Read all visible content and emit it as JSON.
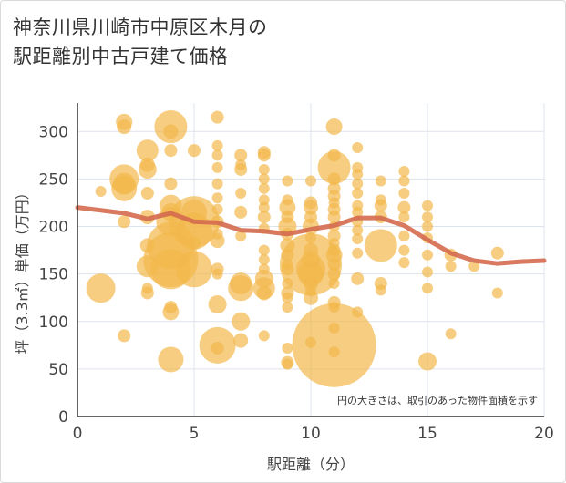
{
  "title_lines": [
    "神奈川県川崎市中原区木月の",
    "駅距離別中古戸建て価格"
  ],
  "colors": {
    "bubble": "#f2b84b",
    "line": "#d46a4f",
    "grid": "#dde3ec",
    "axis": "#333333"
  },
  "chart_data": {
    "type": "scatter",
    "title": "神奈川県川崎市中原区木月の駅距離別中古戸建て価格",
    "xlabel": "駅距離（分）",
    "ylabel": "坪（3.3㎡）単価（万円）",
    "xlim": [
      0,
      20
    ],
    "ylim": [
      0,
      330
    ],
    "xticks": [
      0,
      5,
      10,
      15,
      20
    ],
    "yticks": [
      0,
      50,
      100,
      150,
      200,
      250,
      300
    ],
    "grid": true,
    "annotation": "円の大きさは、取引のあった物件面積を示す",
    "points": [
      {
        "x": 1,
        "y": 237,
        "s": 6
      },
      {
        "x": 1,
        "y": 135,
        "s": 16
      },
      {
        "x": 2,
        "y": 310,
        "s": 9
      },
      {
        "x": 2,
        "y": 305,
        "s": 8
      },
      {
        "x": 2,
        "y": 250,
        "s": 16
      },
      {
        "x": 2,
        "y": 245,
        "s": 12
      },
      {
        "x": 2,
        "y": 240,
        "s": 14
      },
      {
        "x": 2,
        "y": 205,
        "s": 7
      },
      {
        "x": 2,
        "y": 85,
        "s": 7
      },
      {
        "x": 3,
        "y": 280,
        "s": 12
      },
      {
        "x": 3,
        "y": 265,
        "s": 8
      },
      {
        "x": 3,
        "y": 260,
        "s": 10
      },
      {
        "x": 3,
        "y": 235,
        "s": 7
      },
      {
        "x": 3,
        "y": 210,
        "s": 8
      },
      {
        "x": 3,
        "y": 180,
        "s": 8
      },
      {
        "x": 3,
        "y": 158,
        "s": 12
      },
      {
        "x": 3,
        "y": 135,
        "s": 6
      },
      {
        "x": 3,
        "y": 130,
        "s": 7
      },
      {
        "x": 4,
        "y": 305,
        "s": 18
      },
      {
        "x": 4,
        "y": 300,
        "s": 8
      },
      {
        "x": 4,
        "y": 280,
        "s": 7
      },
      {
        "x": 4,
        "y": 245,
        "s": 7
      },
      {
        "x": 4,
        "y": 222,
        "s": 12
      },
      {
        "x": 4,
        "y": 215,
        "s": 10
      },
      {
        "x": 4,
        "y": 205,
        "s": 16
      },
      {
        "x": 4,
        "y": 180,
        "s": 26
      },
      {
        "x": 4,
        "y": 165,
        "s": 30
      },
      {
        "x": 4,
        "y": 155,
        "s": 22
      },
      {
        "x": 4,
        "y": 115,
        "s": 7
      },
      {
        "x": 4,
        "y": 110,
        "s": 9
      },
      {
        "x": 4,
        "y": 60,
        "s": 14
      },
      {
        "x": 5,
        "y": 280,
        "s": 7
      },
      {
        "x": 5,
        "y": 215,
        "s": 14
      },
      {
        "x": 5,
        "y": 205,
        "s": 28
      },
      {
        "x": 5,
        "y": 195,
        "s": 20
      },
      {
        "x": 5,
        "y": 182,
        "s": 7
      },
      {
        "x": 5,
        "y": 155,
        "s": 20
      },
      {
        "x": 6,
        "y": 315,
        "s": 7
      },
      {
        "x": 6,
        "y": 285,
        "s": 6
      },
      {
        "x": 6,
        "y": 275,
        "s": 6
      },
      {
        "x": 6,
        "y": 262,
        "s": 6
      },
      {
        "x": 6,
        "y": 245,
        "s": 6
      },
      {
        "x": 6,
        "y": 230,
        "s": 6
      },
      {
        "x": 6,
        "y": 218,
        "s": 6
      },
      {
        "x": 6,
        "y": 205,
        "s": 7
      },
      {
        "x": 6,
        "y": 192,
        "s": 6
      },
      {
        "x": 6,
        "y": 185,
        "s": 8
      },
      {
        "x": 6,
        "y": 155,
        "s": 7
      },
      {
        "x": 6,
        "y": 150,
        "s": 6
      },
      {
        "x": 6,
        "y": 118,
        "s": 10
      },
      {
        "x": 6,
        "y": 75,
        "s": 20
      },
      {
        "x": 6,
        "y": 72,
        "s": 7
      },
      {
        "x": 7,
        "y": 275,
        "s": 7
      },
      {
        "x": 7,
        "y": 265,
        "s": 6
      },
      {
        "x": 7,
        "y": 260,
        "s": 7
      },
      {
        "x": 7,
        "y": 235,
        "s": 6
      },
      {
        "x": 7,
        "y": 215,
        "s": 7
      },
      {
        "x": 7,
        "y": 190,
        "s": 6
      },
      {
        "x": 7,
        "y": 140,
        "s": 12
      },
      {
        "x": 7,
        "y": 135,
        "s": 14
      },
      {
        "x": 7,
        "y": 100,
        "s": 10
      },
      {
        "x": 7,
        "y": 80,
        "s": 8
      },
      {
        "x": 8,
        "y": 278,
        "s": 7
      },
      {
        "x": 8,
        "y": 275,
        "s": 7
      },
      {
        "x": 8,
        "y": 260,
        "s": 6
      },
      {
        "x": 8,
        "y": 250,
        "s": 6
      },
      {
        "x": 8,
        "y": 240,
        "s": 6
      },
      {
        "x": 8,
        "y": 228,
        "s": 6
      },
      {
        "x": 8,
        "y": 220,
        "s": 6
      },
      {
        "x": 8,
        "y": 210,
        "s": 7
      },
      {
        "x": 8,
        "y": 198,
        "s": 6
      },
      {
        "x": 8,
        "y": 175,
        "s": 6
      },
      {
        "x": 8,
        "y": 165,
        "s": 6
      },
      {
        "x": 8,
        "y": 155,
        "s": 6
      },
      {
        "x": 8,
        "y": 145,
        "s": 10
      },
      {
        "x": 8,
        "y": 135,
        "s": 12
      },
      {
        "x": 8,
        "y": 130,
        "s": 8
      },
      {
        "x": 8,
        "y": 85,
        "s": 6
      },
      {
        "x": 9,
        "y": 248,
        "s": 6
      },
      {
        "x": 9,
        "y": 228,
        "s": 6
      },
      {
        "x": 9,
        "y": 220,
        "s": 9
      },
      {
        "x": 9,
        "y": 210,
        "s": 7
      },
      {
        "x": 9,
        "y": 200,
        "s": 10
      },
      {
        "x": 9,
        "y": 192,
        "s": 7
      },
      {
        "x": 9,
        "y": 180,
        "s": 8
      },
      {
        "x": 9,
        "y": 170,
        "s": 7
      },
      {
        "x": 9,
        "y": 160,
        "s": 6
      },
      {
        "x": 9,
        "y": 155,
        "s": 7
      },
      {
        "x": 9,
        "y": 140,
        "s": 6
      },
      {
        "x": 9,
        "y": 130,
        "s": 7
      },
      {
        "x": 9,
        "y": 125,
        "s": 6
      },
      {
        "x": 9,
        "y": 115,
        "s": 6
      },
      {
        "x": 9,
        "y": 72,
        "s": 6
      },
      {
        "x": 9,
        "y": 57,
        "s": 7
      },
      {
        "x": 9,
        "y": 55,
        "s": 6
      },
      {
        "x": 10,
        "y": 248,
        "s": 6
      },
      {
        "x": 10,
        "y": 225,
        "s": 7
      },
      {
        "x": 10,
        "y": 220,
        "s": 8
      },
      {
        "x": 10,
        "y": 210,
        "s": 7
      },
      {
        "x": 10,
        "y": 200,
        "s": 9
      },
      {
        "x": 10,
        "y": 188,
        "s": 6
      },
      {
        "x": 10,
        "y": 175,
        "s": 8
      },
      {
        "x": 10,
        "y": 165,
        "s": 10
      },
      {
        "x": 10,
        "y": 160,
        "s": 34
      },
      {
        "x": 10,
        "y": 155,
        "s": 16
      },
      {
        "x": 10,
        "y": 150,
        "s": 14
      },
      {
        "x": 10,
        "y": 140,
        "s": 8
      },
      {
        "x": 10,
        "y": 132,
        "s": 6
      },
      {
        "x": 10,
        "y": 125,
        "s": 8
      },
      {
        "x": 10,
        "y": 78,
        "s": 6
      },
      {
        "x": 11,
        "y": 305,
        "s": 9
      },
      {
        "x": 11,
        "y": 275,
        "s": 7
      },
      {
        "x": 11,
        "y": 262,
        "s": 18
      },
      {
        "x": 11,
        "y": 250,
        "s": 7
      },
      {
        "x": 11,
        "y": 240,
        "s": 7
      },
      {
        "x": 11,
        "y": 232,
        "s": 7
      },
      {
        "x": 11,
        "y": 225,
        "s": 6
      },
      {
        "x": 11,
        "y": 218,
        "s": 7
      },
      {
        "x": 11,
        "y": 210,
        "s": 7
      },
      {
        "x": 11,
        "y": 200,
        "s": 6
      },
      {
        "x": 11,
        "y": 190,
        "s": 7
      },
      {
        "x": 11,
        "y": 182,
        "s": 6
      },
      {
        "x": 11,
        "y": 175,
        "s": 7
      },
      {
        "x": 11,
        "y": 170,
        "s": 9
      },
      {
        "x": 11,
        "y": 160,
        "s": 7
      },
      {
        "x": 11,
        "y": 150,
        "s": 7
      },
      {
        "x": 11,
        "y": 140,
        "s": 6
      },
      {
        "x": 11,
        "y": 120,
        "s": 7
      },
      {
        "x": 11,
        "y": 115,
        "s": 6
      },
      {
        "x": 11,
        "y": 93,
        "s": 6
      },
      {
        "x": 11,
        "y": 75,
        "s": 46
      },
      {
        "x": 11,
        "y": 68,
        "s": 6
      },
      {
        "x": 12,
        "y": 283,
        "s": 6
      },
      {
        "x": 12,
        "y": 262,
        "s": 6
      },
      {
        "x": 12,
        "y": 255,
        "s": 6
      },
      {
        "x": 12,
        "y": 245,
        "s": 6
      },
      {
        "x": 12,
        "y": 235,
        "s": 6
      },
      {
        "x": 12,
        "y": 222,
        "s": 6
      },
      {
        "x": 12,
        "y": 215,
        "s": 6
      },
      {
        "x": 12,
        "y": 205,
        "s": 6
      },
      {
        "x": 12,
        "y": 196,
        "s": 6
      },
      {
        "x": 12,
        "y": 187,
        "s": 6
      },
      {
        "x": 12,
        "y": 172,
        "s": 6
      },
      {
        "x": 12,
        "y": 145,
        "s": 7
      },
      {
        "x": 12,
        "y": 110,
        "s": 6
      },
      {
        "x": 13,
        "y": 248,
        "s": 6
      },
      {
        "x": 13,
        "y": 228,
        "s": 6
      },
      {
        "x": 13,
        "y": 222,
        "s": 7
      },
      {
        "x": 13,
        "y": 210,
        "s": 7
      },
      {
        "x": 13,
        "y": 180,
        "s": 18
      },
      {
        "x": 13,
        "y": 140,
        "s": 7
      },
      {
        "x": 13,
        "y": 133,
        "s": 6
      },
      {
        "x": 14,
        "y": 258,
        "s": 6
      },
      {
        "x": 14,
        "y": 248,
        "s": 6
      },
      {
        "x": 14,
        "y": 235,
        "s": 6
      },
      {
        "x": 14,
        "y": 220,
        "s": 7
      },
      {
        "x": 14,
        "y": 210,
        "s": 6
      },
      {
        "x": 14,
        "y": 190,
        "s": 6
      },
      {
        "x": 14,
        "y": 175,
        "s": 6
      },
      {
        "x": 14,
        "y": 162,
        "s": 6
      },
      {
        "x": 15,
        "y": 222,
        "s": 6
      },
      {
        "x": 15,
        "y": 210,
        "s": 6
      },
      {
        "x": 15,
        "y": 200,
        "s": 6
      },
      {
        "x": 15,
        "y": 188,
        "s": 6
      },
      {
        "x": 15,
        "y": 170,
        "s": 6
      },
      {
        "x": 15,
        "y": 152,
        "s": 6
      },
      {
        "x": 15,
        "y": 135,
        "s": 6
      },
      {
        "x": 15,
        "y": 58,
        "s": 10
      },
      {
        "x": 16,
        "y": 170,
        "s": 7
      },
      {
        "x": 16,
        "y": 158,
        "s": 6
      },
      {
        "x": 16,
        "y": 87,
        "s": 6
      },
      {
        "x": 17,
        "y": 158,
        "s": 6
      },
      {
        "x": 18,
        "y": 172,
        "s": 7
      },
      {
        "x": 18,
        "y": 130,
        "s": 6
      }
    ],
    "trend": {
      "x": [
        0,
        1,
        2,
        3,
        4,
        5,
        6,
        7,
        8,
        9,
        10,
        11,
        12,
        13,
        14,
        15,
        16,
        17,
        18,
        19,
        20
      ],
      "y": [
        220,
        217,
        214,
        208,
        214,
        205,
        204,
        196,
        195,
        192,
        197,
        201,
        209,
        209,
        201,
        186,
        172,
        164,
        161,
        163,
        164
      ]
    }
  }
}
